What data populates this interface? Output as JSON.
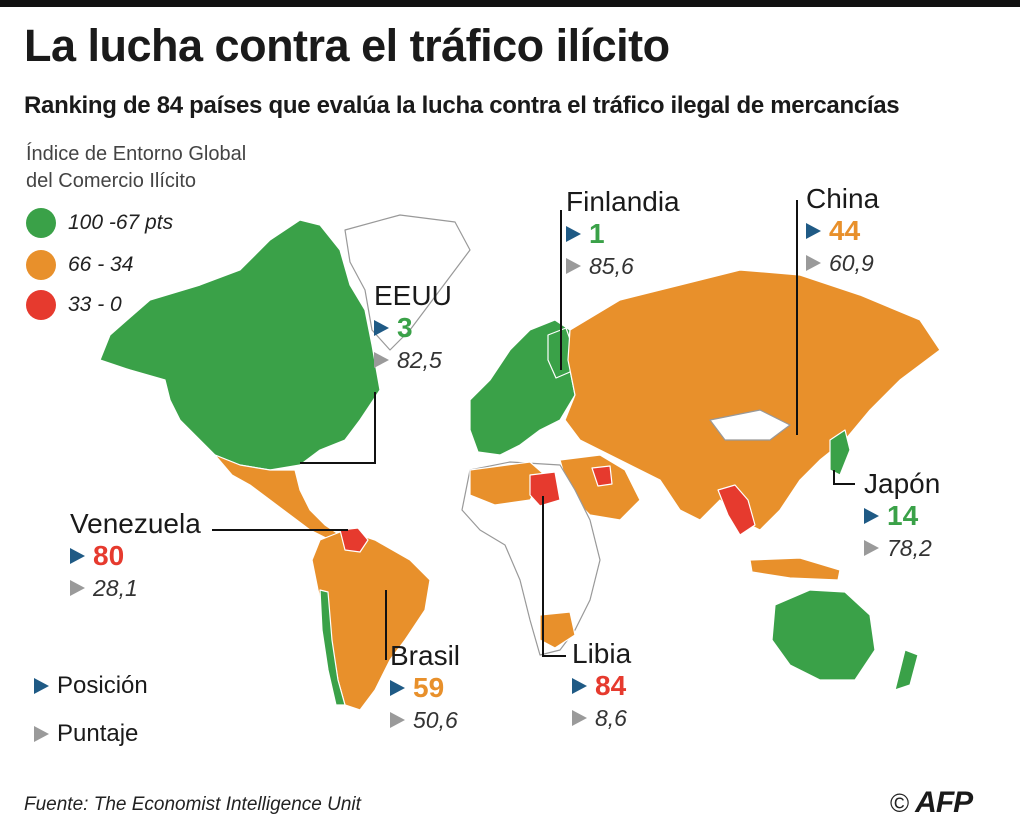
{
  "title": "La lucha contra el tráfico ilícito",
  "subtitle": "Ranking de 84 países que evalúa la lucha contra el tráfico ilegal de mercancías",
  "legend": {
    "title_line1": "Índice de Entorno Global",
    "title_line2": "del Comercio Ilícito",
    "items": [
      {
        "label": "100 -67 pts",
        "color": "#3aa148"
      },
      {
        "label": "66 - 34",
        "color": "#e8902b"
      },
      {
        "label": "33 - 0",
        "color": "#e63a2e"
      }
    ]
  },
  "countries": {
    "eeuu": {
      "name": "EEUU",
      "rank": "3",
      "score": "82,5",
      "color": "#3aa148"
    },
    "finlandia": {
      "name": "Finlandia",
      "rank": "1",
      "score": "85,6",
      "color": "#3aa148"
    },
    "china": {
      "name": "China",
      "rank": "44",
      "score": "60,9",
      "color": "#e8902b"
    },
    "japon": {
      "name": "Japón",
      "rank": "14",
      "score": "78,2",
      "color": "#3aa148"
    },
    "venezuela": {
      "name": "Venezuela",
      "rank": "80",
      "score": "28,1",
      "color": "#e63a2e"
    },
    "brasil": {
      "name": "Brasil",
      "rank": "59",
      "score": "50,6",
      "color": "#e8902b"
    },
    "libia": {
      "name": "Libia",
      "rank": "84",
      "score": "8,6",
      "color": "#e63a2e"
    }
  },
  "key": {
    "position": "Posición",
    "score": "Puntaje"
  },
  "source": "Fuente: The Economist Intelligence Unit",
  "credit": {
    "copyright": "©",
    "logo": "AFP"
  }
}
